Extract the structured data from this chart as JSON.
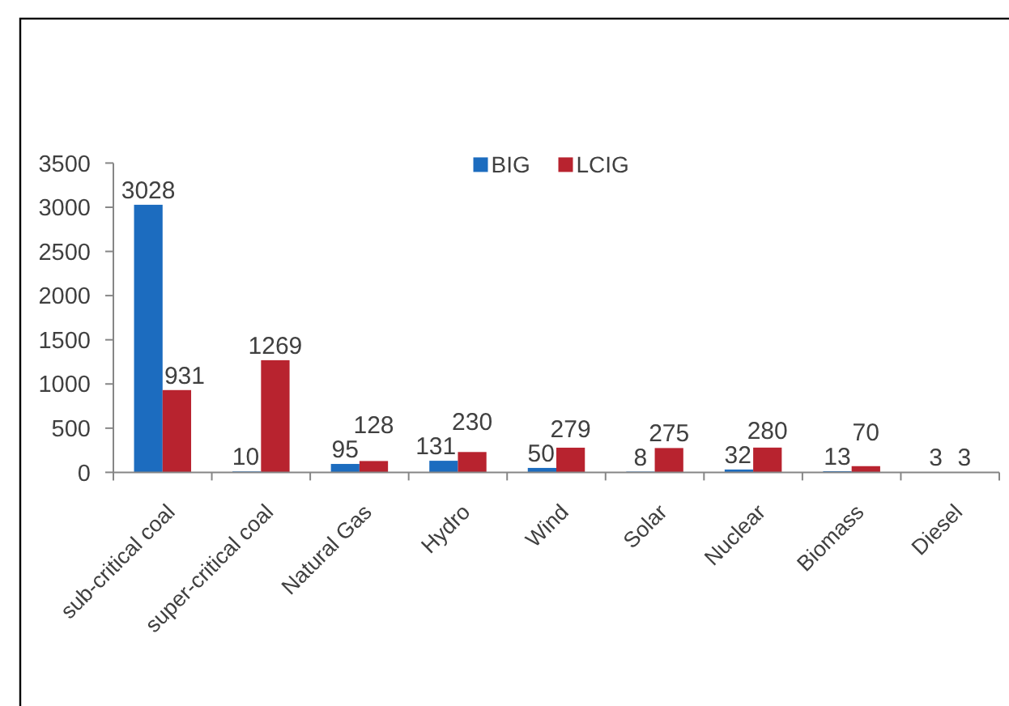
{
  "chart_data": {
    "type": "bar",
    "categories": [
      "sub-critical coal",
      "super-critical coal",
      "Natural Gas",
      "Hydro",
      "Wind",
      "Solar",
      "Nuclear",
      "Biomass",
      "Diesel"
    ],
    "series": [
      {
        "name": "BIG",
        "color": "#1c6cbf",
        "values": [
          3028,
          10,
          95,
          131,
          50,
          8,
          32,
          13,
          3
        ]
      },
      {
        "name": "LCIG",
        "color": "#b8232f",
        "values": [
          931,
          1269,
          128,
          230,
          279,
          275,
          280,
          70,
          3
        ]
      }
    ],
    "ylim": [
      0,
      3500
    ],
    "yticks": [
      0,
      500,
      1000,
      1500,
      2000,
      2500,
      3000,
      3500
    ],
    "legend": "top",
    "data_labels": true
  }
}
